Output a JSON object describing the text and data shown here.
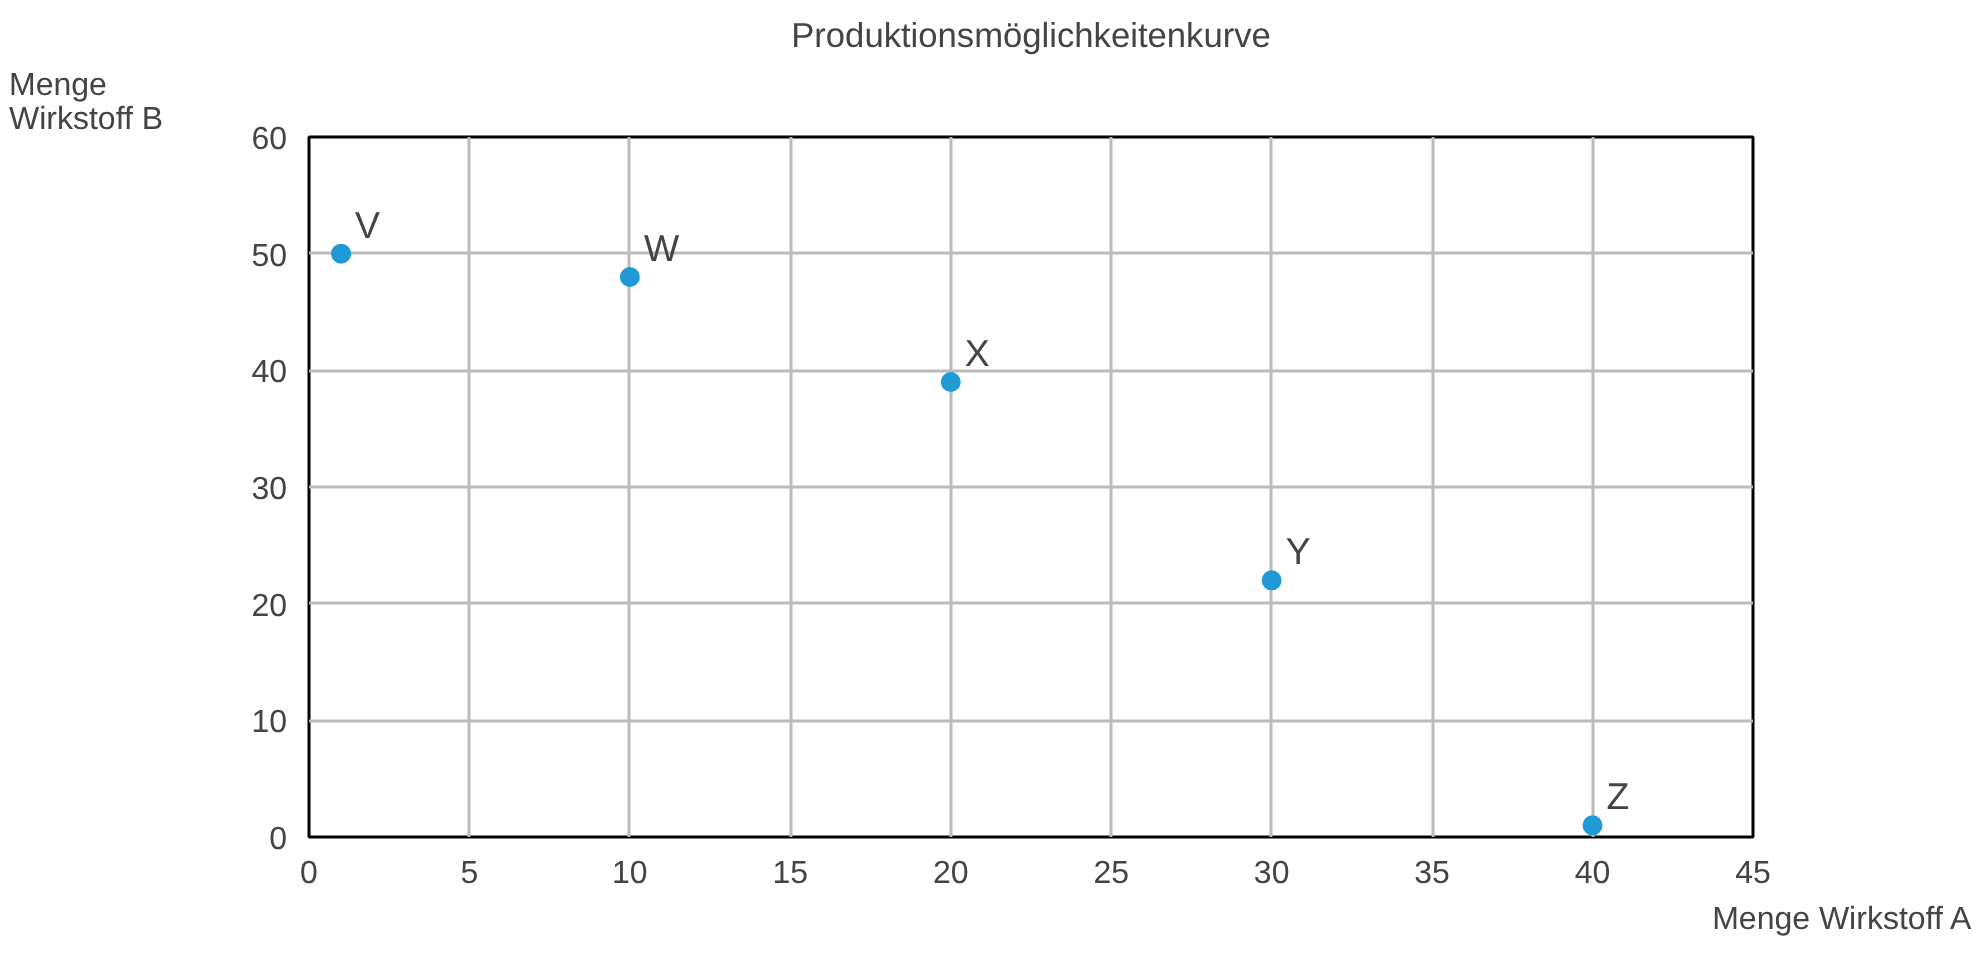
{
  "chart_data": {
    "type": "scatter",
    "title": "Produktionsmöglichkeitenkurve",
    "xlabel": "Menge Wirkstoff A",
    "ylabel": "Menge\nWirkstoff B",
    "x": [
      1,
      10,
      20,
      30,
      40
    ],
    "series": [
      {
        "color": "#1f9ad6",
        "values": [
          50,
          48,
          39,
          22,
          1
        ]
      }
    ],
    "xlim": [
      0,
      45
    ],
    "xticks": [
      0,
      5,
      10,
      15,
      20,
      25,
      30,
      35,
      40,
      45
    ],
    "ylim": [
      0,
      60
    ],
    "yticks": [
      0,
      10,
      20,
      30,
      40,
      50,
      60
    ],
    "grid": true,
    "marker": "circle",
    "annotations": [
      {
        "text": "V",
        "x": 1,
        "y": 50
      },
      {
        "text": "W",
        "x": 10,
        "y": 48
      },
      {
        "text": "X",
        "x": 20,
        "y": 39
      },
      {
        "text": "Y",
        "x": 30,
        "y": 22
      },
      {
        "text": "Z",
        "x": 40,
        "y": 1
      }
    ]
  }
}
